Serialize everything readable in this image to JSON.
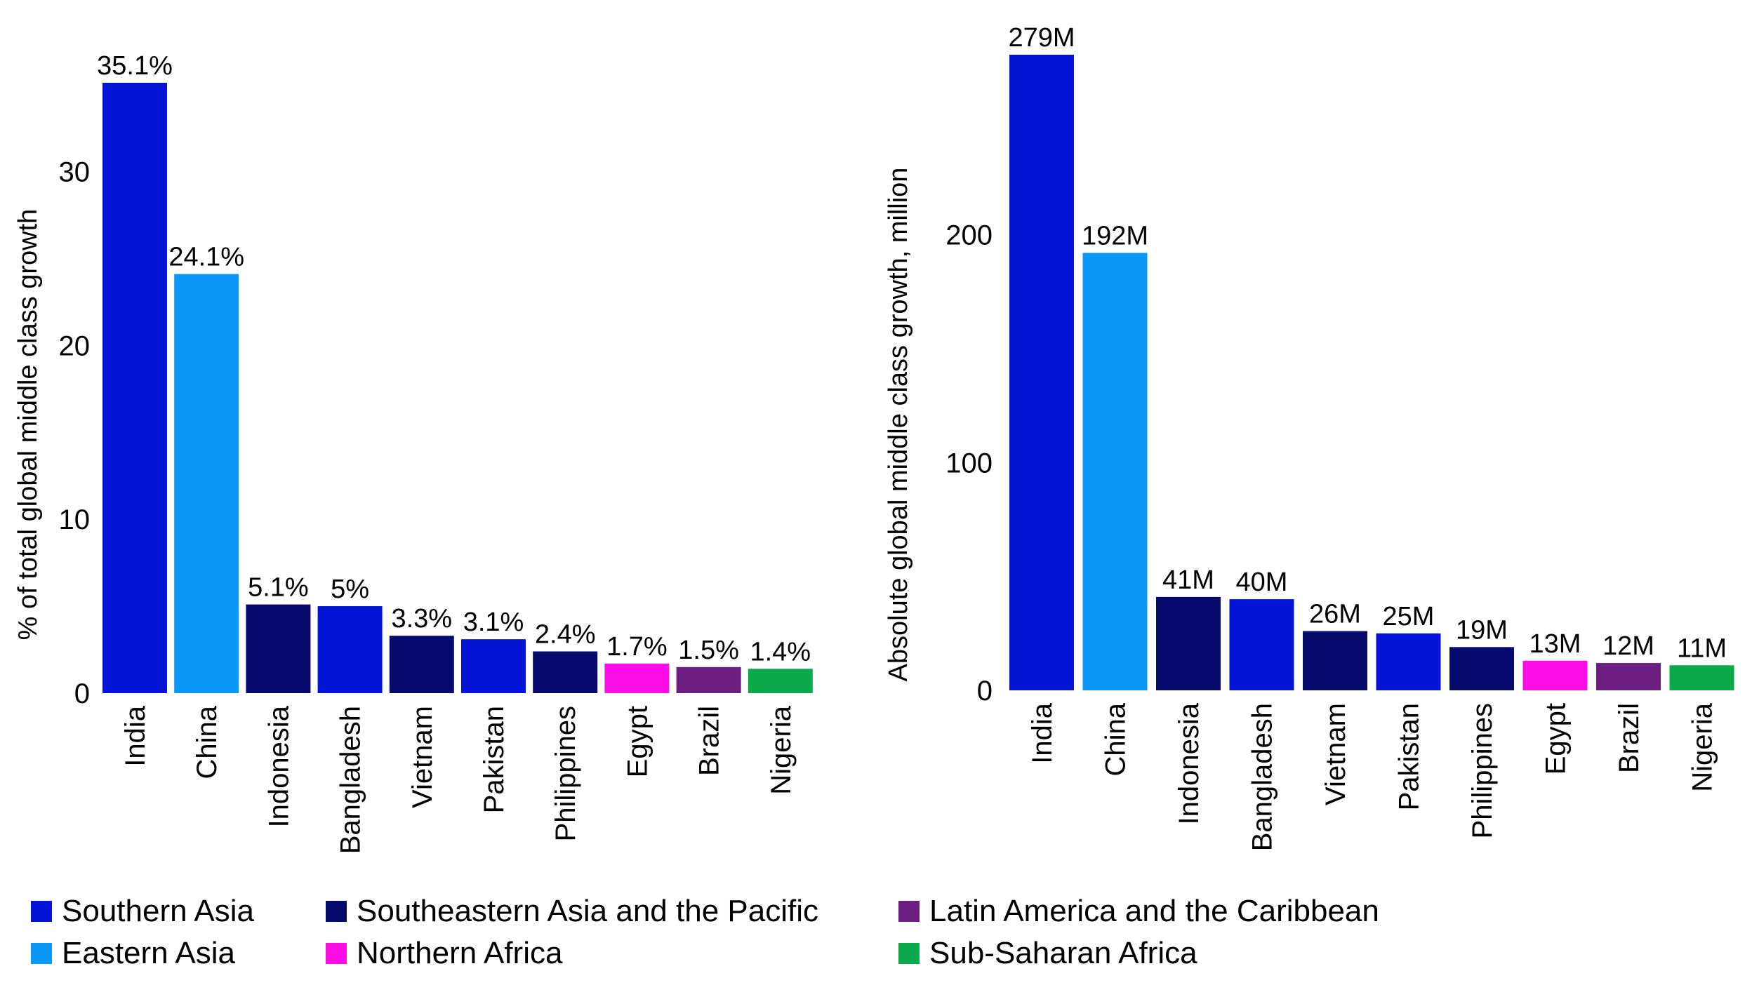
{
  "colors": {
    "Southern Asia": "#0515d8",
    "Eastern Asia": "#0a97f8",
    "Southeastern Asia and the Pacific": "#060a6c",
    "Northern Africa": "#fd0de5",
    "Latin America and the Caribbean": "#6c1f80",
    "Sub-Saharan Africa": "#0aa94b"
  },
  "legend": [
    {
      "label": "Southern Asia",
      "color": "#0515d8"
    },
    {
      "label": "Eastern Asia",
      "color": "#0a97f8"
    },
    {
      "label": "Southeastern Asia and the Pacific",
      "color": "#060a6c"
    },
    {
      "label": "Northern Africa",
      "color": "#fd0de5"
    },
    {
      "label": "Latin America and the Caribbean",
      "color": "#6c1f80"
    },
    {
      "label": "Sub-Saharan Africa",
      "color": "#0aa94b"
    }
  ],
  "chart_data": [
    {
      "type": "bar",
      "title": "",
      "xlabel": "",
      "ylabel": "% of total global middle class growth",
      "ylim": [
        0,
        36
      ],
      "yticks": [
        0,
        10,
        20,
        30
      ],
      "grid": false,
      "categories": [
        "India",
        "China",
        "Indonesia",
        "Bangladesh",
        "Vietnam",
        "Pakistan",
        "Philippines",
        "Egypt",
        "Brazil",
        "Nigeria"
      ],
      "regions": [
        "Southern Asia",
        "Eastern Asia",
        "Southeastern Asia and the Pacific",
        "Southern Asia",
        "Southeastern Asia and the Pacific",
        "Southern Asia",
        "Southeastern Asia and the Pacific",
        "Northern Africa",
        "Latin America and the Caribbean",
        "Sub-Saharan Africa"
      ],
      "values": [
        35.1,
        24.1,
        5.1,
        5,
        3.3,
        3.1,
        2.4,
        1.7,
        1.5,
        1.4
      ],
      "data_labels": [
        "35.1%",
        "24.1%",
        "5.1%",
        "5%",
        "3.3%",
        "3.1%",
        "2.4%",
        "1.7%",
        "1.5%",
        "1.4%"
      ]
    },
    {
      "type": "bar",
      "title": "",
      "xlabel": "",
      "ylabel": "Absolute global middle class growth, million",
      "ylim": [
        0,
        290
      ],
      "yticks": [
        0,
        100,
        200
      ],
      "grid": false,
      "categories": [
        "India",
        "China",
        "Indonesia",
        "Bangladesh",
        "Vietnam",
        "Pakistan",
        "Philippines",
        "Egypt",
        "Brazil",
        "Nigeria"
      ],
      "regions": [
        "Southern Asia",
        "Eastern Asia",
        "Southeastern Asia and the Pacific",
        "Southern Asia",
        "Southeastern Asia and the Pacific",
        "Southern Asia",
        "Southeastern Asia and the Pacific",
        "Northern Africa",
        "Latin America and the Caribbean",
        "Sub-Saharan Africa"
      ],
      "values": [
        279,
        192,
        41,
        40,
        26,
        25,
        19,
        13,
        12,
        11
      ],
      "data_labels": [
        "279M",
        "192M",
        "41M",
        "40M",
        "26M",
        "25M",
        "19M",
        "13M",
        "12M",
        "11M"
      ]
    }
  ]
}
